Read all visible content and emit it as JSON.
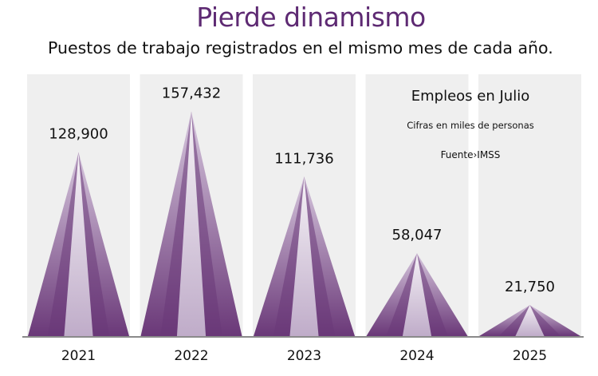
{
  "header": {
    "title": "Pierde dinamismo",
    "subtitle": "Puestos de trabajo registrados en el mismo mes de cada año."
  },
  "note": {
    "title": "Empleos en Julio",
    "units": "Cifras en miles de personas",
    "source": "Fuente›IMSS"
  },
  "colors": {
    "title": "#5e2a73",
    "band": "#efefef",
    "mark_dark": "#6a3878",
    "mark_light": "#c9b9d2",
    "baseline": "#8a8a8a"
  },
  "chart_data": {
    "type": "bar",
    "title": "Pierde dinamismo",
    "subtitle": "Puestos de trabajo registrados en el mismo mes de cada año.",
    "categories": [
      "2021",
      "2022",
      "2023",
      "2024",
      "2025"
    ],
    "values": [
      128900,
      157432,
      111736,
      58047,
      21750
    ],
    "value_labels": [
      "128,900",
      "157,432",
      "111,736",
      "58,047",
      "21,750"
    ],
    "ylim": [
      0,
      160000
    ],
    "grid": false,
    "legend": "none"
  }
}
